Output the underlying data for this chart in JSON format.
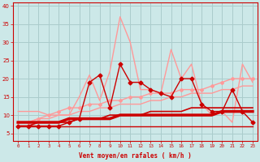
{
  "bg_color": "#cce8e8",
  "grid_color": "#aacccc",
  "xlabel": "Vent moyen/en rafales ( km/h )",
  "xlabel_color": "#cc0000",
  "tick_color": "#cc0000",
  "x_ticks": [
    0,
    1,
    2,
    3,
    4,
    5,
    6,
    7,
    8,
    9,
    10,
    11,
    12,
    13,
    14,
    15,
    16,
    17,
    18,
    19,
    20,
    21,
    22,
    23
  ],
  "ylim": [
    3,
    41
  ],
  "yticks": [
    5,
    10,
    15,
    20,
    25,
    30,
    35,
    40
  ],
  "series": [
    {
      "x": [
        0,
        1,
        2,
        3,
        4,
        5,
        6,
        7,
        8,
        9,
        10,
        11,
        12,
        13,
        14,
        15,
        16,
        17,
        18,
        19,
        20,
        21,
        22,
        23
      ],
      "y": [
        11,
        11,
        11,
        10,
        10,
        10,
        15,
        21,
        14,
        22,
        37,
        30,
        17,
        17,
        16,
        28,
        20,
        24,
        13,
        10,
        11,
        8,
        24,
        19
      ],
      "color": "#ff9999",
      "lw": 1.0,
      "marker": null,
      "ms": 0,
      "zorder": 2
    },
    {
      "x": [
        0,
        1,
        2,
        3,
        4,
        5,
        6,
        7,
        8,
        9,
        10,
        11,
        12,
        13,
        14,
        15,
        16,
        17,
        18,
        19,
        20,
        21,
        22,
        23
      ],
      "y": [
        8,
        8,
        9,
        10,
        11,
        12,
        12,
        13,
        13,
        14,
        14,
        15,
        15,
        16,
        16,
        16,
        17,
        17,
        17,
        18,
        19,
        20,
        20,
        20
      ],
      "color": "#ff9999",
      "lw": 1.0,
      "marker": "D",
      "ms": 2.0,
      "zorder": 3
    },
    {
      "x": [
        0,
        1,
        2,
        3,
        4,
        5,
        6,
        7,
        8,
        9,
        10,
        11,
        12,
        13,
        14,
        15,
        16,
        17,
        18,
        19,
        20,
        21,
        22,
        23
      ],
      "y": [
        8,
        8,
        9,
        9,
        10,
        10,
        11,
        11,
        12,
        12,
        13,
        13,
        13,
        14,
        14,
        15,
        15,
        16,
        16,
        16,
        17,
        17,
        18,
        18
      ],
      "color": "#ff9999",
      "lw": 1.0,
      "marker": null,
      "ms": 0,
      "zorder": 2
    },
    {
      "x": [
        0,
        1,
        2,
        3,
        4,
        5,
        6,
        7,
        8,
        9,
        10,
        11,
        12,
        13,
        14,
        15,
        16,
        17,
        18,
        19,
        20,
        21,
        22,
        23
      ],
      "y": [
        7,
        7,
        7,
        7,
        7,
        8,
        9,
        19,
        21,
        12,
        24,
        19,
        19,
        17,
        16,
        15,
        20,
        20,
        13,
        11,
        11,
        17,
        11,
        8
      ],
      "color": "#cc0000",
      "lw": 1.0,
      "marker": "D",
      "ms": 2.5,
      "zorder": 4
    },
    {
      "x": [
        0,
        1,
        2,
        3,
        4,
        5,
        6,
        7,
        8,
        9,
        10,
        11,
        12,
        13,
        14,
        15,
        16,
        17,
        18,
        19,
        20,
        21,
        22,
        23
      ],
      "y": [
        7,
        7,
        8,
        8,
        8,
        8,
        9,
        9,
        9,
        10,
        10,
        10,
        10,
        11,
        11,
        11,
        11,
        12,
        12,
        12,
        12,
        12,
        12,
        12
      ],
      "color": "#cc0000",
      "lw": 1.2,
      "marker": null,
      "ms": 0,
      "zorder": 2
    },
    {
      "x": [
        0,
        1,
        2,
        3,
        4,
        5,
        6,
        7,
        8,
        9,
        10,
        11,
        12,
        13,
        14,
        15,
        16,
        17,
        18,
        19,
        20,
        21,
        22,
        23
      ],
      "y": [
        8,
        8,
        8,
        8,
        8,
        9,
        9,
        9,
        9,
        9,
        10,
        10,
        10,
        10,
        10,
        10,
        10,
        10,
        10,
        10,
        11,
        11,
        11,
        11
      ],
      "color": "#cc0000",
      "lw": 2.5,
      "marker": null,
      "ms": 0,
      "zorder": 3
    },
    {
      "x": [
        0,
        1,
        2,
        3,
        4,
        5,
        6,
        7,
        8,
        9,
        10,
        11,
        12,
        13,
        14,
        15,
        16,
        17,
        18,
        19,
        20,
        21,
        22,
        23
      ],
      "y": [
        7,
        7,
        7,
        7,
        7,
        7,
        7,
        7,
        7,
        7,
        7,
        7,
        7,
        7,
        7,
        7,
        7,
        7,
        7,
        7,
        7,
        7,
        7,
        7
      ],
      "color": "#cc0000",
      "lw": 1.0,
      "marker": null,
      "ms": 0,
      "zorder": 2
    }
  ]
}
